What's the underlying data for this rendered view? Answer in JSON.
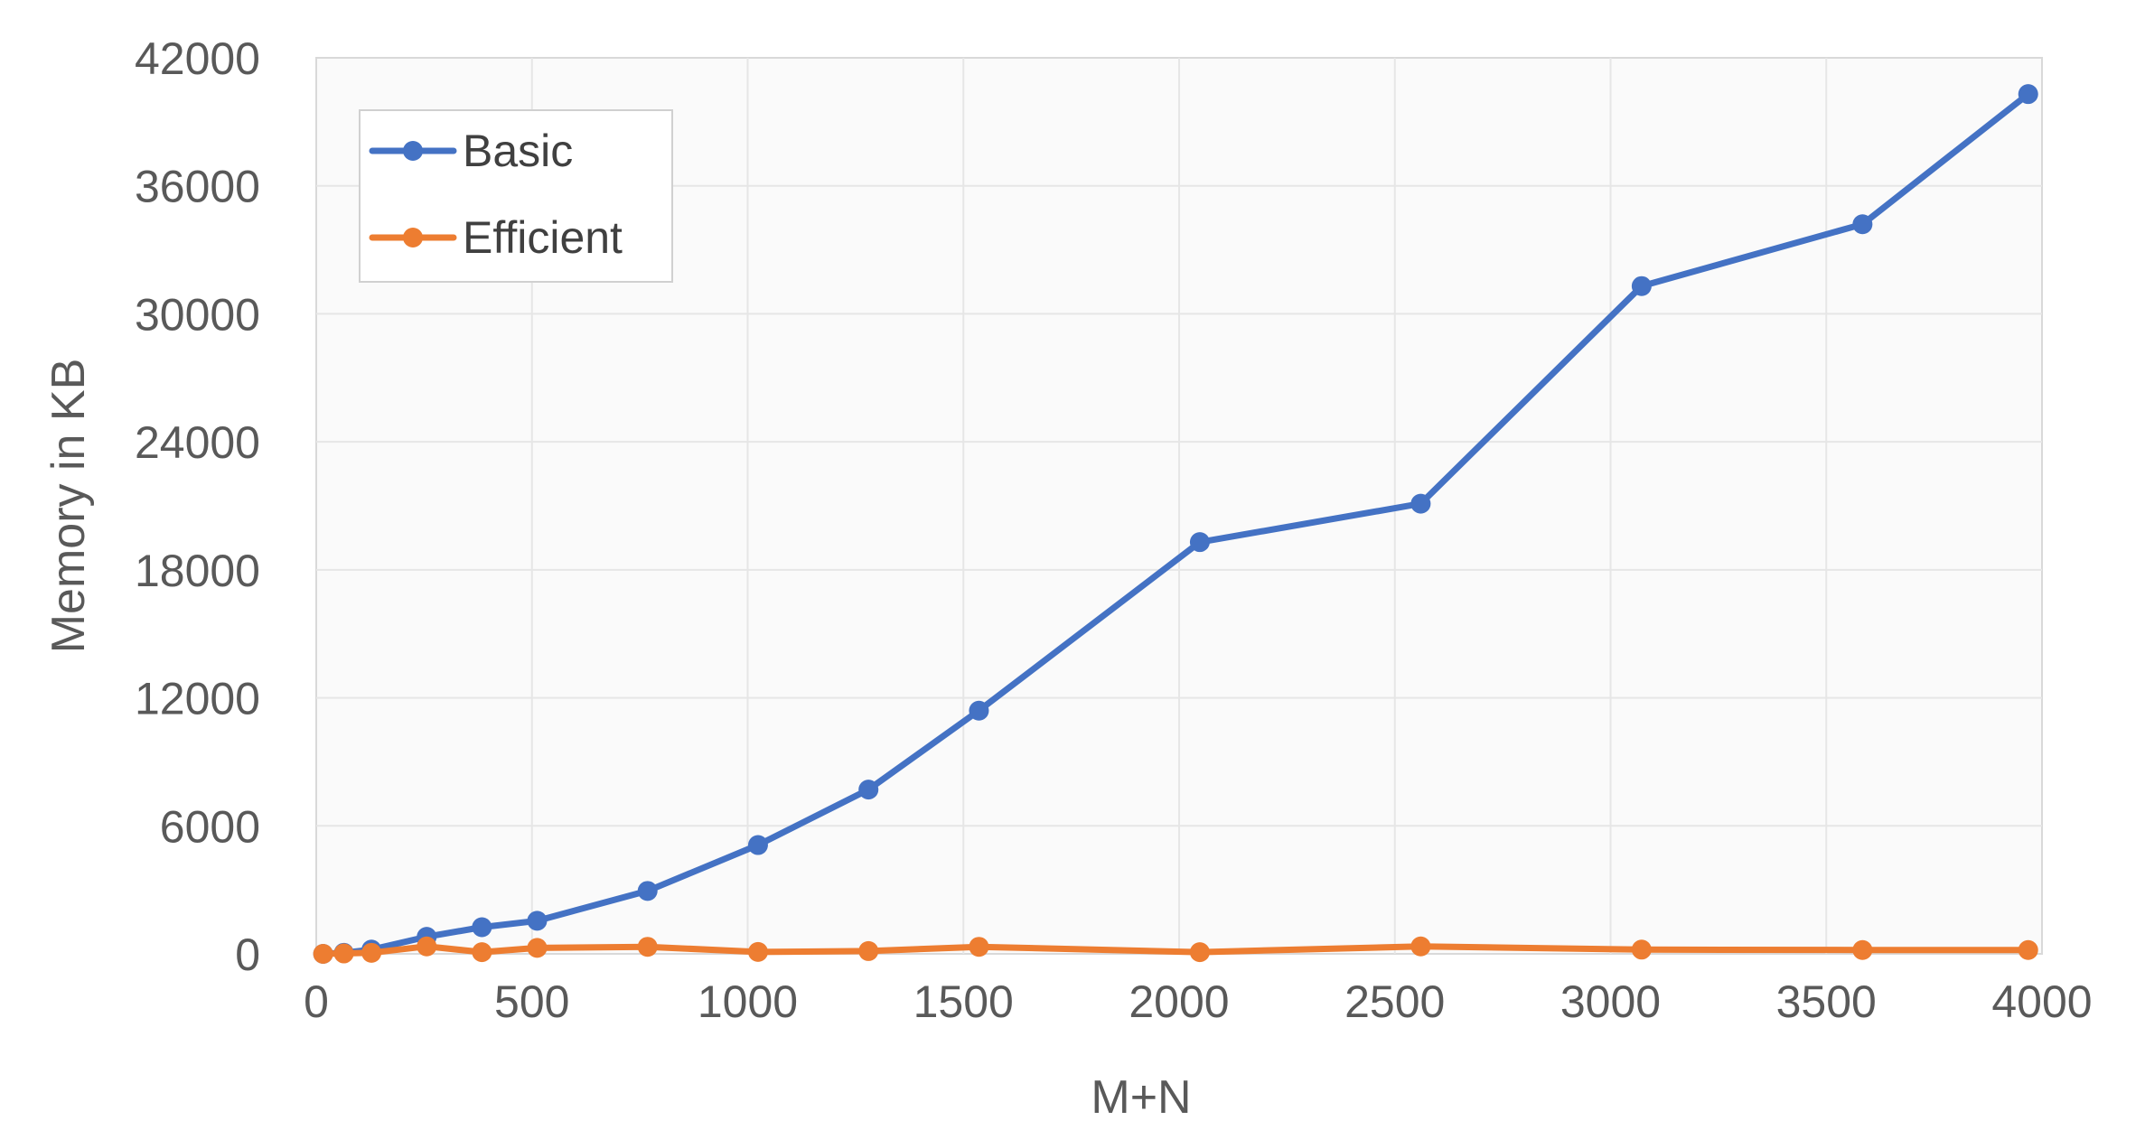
{
  "chart_data": {
    "type": "line",
    "title": "",
    "xlabel": "M+N",
    "ylabel": "Memory in KB",
    "xlim": [
      0,
      4000
    ],
    "ylim": [
      0,
      42000
    ],
    "x_ticks": [
      "0",
      "500",
      "1000",
      "1500",
      "2000",
      "2500",
      "3000",
      "3500",
      "4000"
    ],
    "y_ticks": [
      "0",
      "6000",
      "12000",
      "18000",
      "24000",
      "30000",
      "36000",
      "42000"
    ],
    "grid": true,
    "legend_position": "top-left",
    "series": [
      {
        "name": "Basic",
        "color": "#4472C4",
        "points": [
          [
            16,
            0
          ],
          [
            64,
            50
          ],
          [
            128,
            200
          ],
          [
            256,
            800
          ],
          [
            384,
            1250
          ],
          [
            512,
            1550
          ],
          [
            768,
            2950
          ],
          [
            1024,
            5100
          ],
          [
            1280,
            7700
          ],
          [
            1536,
            11400
          ],
          [
            2048,
            19300
          ],
          [
            2560,
            21100
          ],
          [
            3072,
            31300
          ],
          [
            3584,
            34200
          ],
          [
            3968,
            40300
          ]
        ]
      },
      {
        "name": "Efficient",
        "color": "#ED7D31",
        "points": [
          [
            16,
            0
          ],
          [
            64,
            20
          ],
          [
            128,
            50
          ],
          [
            256,
            350
          ],
          [
            384,
            80
          ],
          [
            512,
            280
          ],
          [
            768,
            330
          ],
          [
            1024,
            90
          ],
          [
            1280,
            130
          ],
          [
            1536,
            330
          ],
          [
            2048,
            80
          ],
          [
            2560,
            350
          ],
          [
            3072,
            200
          ],
          [
            3584,
            180
          ],
          [
            3968,
            180
          ]
        ]
      }
    ]
  }
}
